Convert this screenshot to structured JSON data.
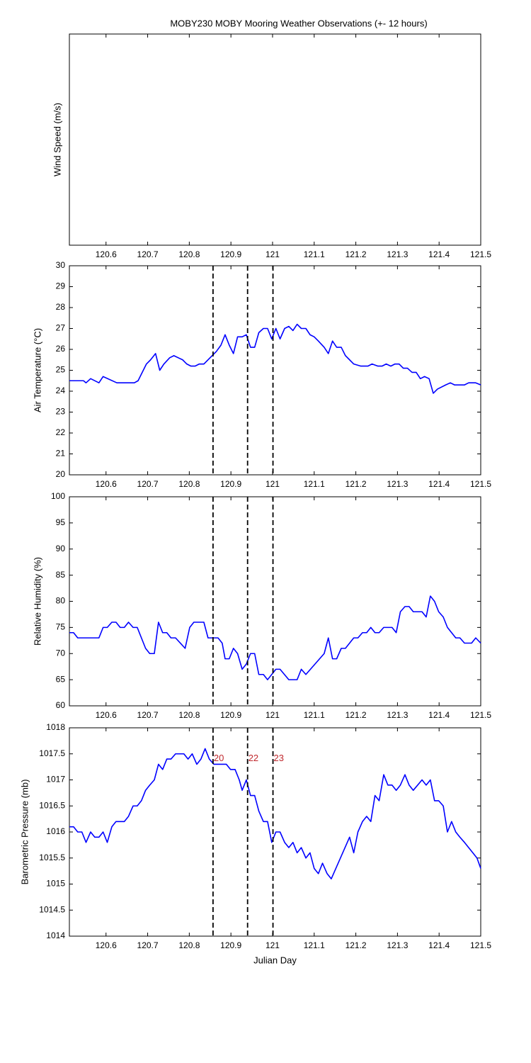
{
  "chart_data": [
    {
      "type": "line",
      "title": "MOBY230 MOBY Mooring Weather Observations (+- 12 hours)",
      "ylabel": "Wind Speed (m/s)",
      "xlim": [
        120.512,
        121.5
      ],
      "xticks": [
        120.6,
        120.7,
        120.8,
        120.9,
        121,
        121.1,
        121.2,
        121.3,
        121.4,
        121.5
      ]
    },
    {
      "type": "line",
      "ylabel": "Air Temperature (°C)",
      "color": "#0000ff",
      "xlim": [
        120.512,
        121.5
      ],
      "xticks": [
        120.6,
        120.7,
        120.8,
        120.9,
        121,
        121.1,
        121.2,
        121.3,
        121.4,
        121.5
      ],
      "ylim": [
        20,
        30
      ],
      "yticks": [
        20,
        21,
        22,
        23,
        24,
        25,
        26,
        27,
        28,
        29,
        30
      ],
      "vlines": [
        120.857,
        120.94,
        121.001
      ],
      "x": [
        120.512,
        120.546,
        120.552,
        120.563,
        120.583,
        120.593,
        120.626,
        120.668,
        120.677,
        120.697,
        120.707,
        120.719,
        120.729,
        120.739,
        120.753,
        120.763,
        120.784,
        120.794,
        120.804,
        120.814,
        120.824,
        120.835,
        120.855,
        120.865,
        120.876,
        120.886,
        120.896,
        120.906,
        120.916,
        120.927,
        120.937,
        120.947,
        120.957,
        120.967,
        120.978,
        120.988,
        120.998,
        121.008,
        121.018,
        121.029,
        121.039,
        121.049,
        121.059,
        121.069,
        121.08,
        121.09,
        121.1,
        121.11,
        121.124,
        121.134,
        121.144,
        121.154,
        121.165,
        121.175,
        121.185,
        121.195,
        121.212,
        121.229,
        121.239,
        121.253,
        121.263,
        121.273,
        121.284,
        121.294,
        121.304,
        121.314,
        121.324,
        121.335,
        121.345,
        121.355,
        121.365,
        121.376,
        121.386,
        121.396,
        121.416,
        121.427,
        121.437,
        121.461,
        121.471,
        121.488,
        121.5
      ],
      "values": [
        24.5,
        24.5,
        24.4,
        24.6,
        24.4,
        24.7,
        24.4,
        24.4,
        24.5,
        25.3,
        25.5,
        25.8,
        25.0,
        25.3,
        25.6,
        25.7,
        25.5,
        25.3,
        25.2,
        25.2,
        25.3,
        25.3,
        25.7,
        25.9,
        26.2,
        26.7,
        26.2,
        25.8,
        26.6,
        26.6,
        26.7,
        26.1,
        26.1,
        26.8,
        27.0,
        27.0,
        26.5,
        27.0,
        26.5,
        27.0,
        27.1,
        26.9,
        27.2,
        27.0,
        27.0,
        26.7,
        26.6,
        26.4,
        26.1,
        25.8,
        26.4,
        26.1,
        26.1,
        25.7,
        25.5,
        25.3,
        25.2,
        25.2,
        25.3,
        25.2,
        25.2,
        25.3,
        25.2,
        25.3,
        25.3,
        25.1,
        25.1,
        24.9,
        24.9,
        24.6,
        24.7,
        24.6,
        23.9,
        24.1,
        24.3,
        24.4,
        24.3,
        24.3,
        24.4,
        24.4,
        24.3
      ]
    },
    {
      "type": "line",
      "ylabel": "Relative Humidity (%)",
      "color": "#0000ff",
      "xlim": [
        120.512,
        121.5
      ],
      "xticks": [
        120.6,
        120.7,
        120.8,
        120.9,
        121,
        121.1,
        121.2,
        121.3,
        121.4,
        121.5
      ],
      "ylim": [
        60,
        100
      ],
      "yticks": [
        60,
        65,
        70,
        75,
        80,
        85,
        90,
        95,
        100
      ],
      "vlines": [
        120.857,
        120.94,
        121.001
      ],
      "x": [
        120.512,
        120.522,
        120.532,
        120.583,
        120.593,
        120.603,
        120.614,
        120.624,
        120.634,
        120.644,
        120.654,
        120.665,
        120.675,
        120.695,
        120.705,
        120.716,
        120.726,
        120.736,
        120.746,
        120.756,
        120.767,
        120.79,
        120.801,
        120.811,
        120.835,
        120.845,
        120.859,
        120.869,
        120.879,
        120.886,
        120.896,
        120.906,
        120.916,
        120.927,
        120.937,
        120.947,
        120.957,
        120.967,
        120.978,
        120.988,
        120.998,
        121.008,
        121.018,
        121.039,
        121.059,
        121.069,
        121.08,
        121.124,
        121.134,
        121.144,
        121.154,
        121.165,
        121.175,
        121.195,
        121.205,
        121.216,
        121.226,
        121.236,
        121.246,
        121.256,
        121.267,
        121.287,
        121.297,
        121.307,
        121.318,
        121.328,
        121.338,
        121.359,
        121.369,
        121.379,
        121.389,
        121.399,
        121.41,
        121.42,
        121.43,
        121.44,
        121.45,
        121.461,
        121.478,
        121.488,
        121.5
      ],
      "values": [
        74,
        74,
        73,
        73,
        75,
        75,
        76,
        76,
        75,
        75,
        76,
        75,
        75,
        71,
        70,
        70,
        76,
        74,
        74,
        73,
        73,
        71,
        75,
        76,
        76,
        73,
        73,
        73,
        72,
        69,
        69,
        71,
        70,
        67,
        68,
        70,
        70,
        66,
        66,
        65,
        66,
        67,
        67,
        65,
        65,
        67,
        66,
        70,
        73,
        69,
        69,
        71,
        71,
        73,
        73,
        74,
        74,
        75,
        74,
        74,
        75,
        75,
        74,
        78,
        79,
        79,
        78,
        78,
        77,
        81,
        80,
        78,
        77,
        75,
        74,
        73,
        73,
        72,
        72,
        73,
        72
      ]
    },
    {
      "type": "line",
      "ylabel": "Barometric Pressure (mb)",
      "xlabel": "Julian Day",
      "color": "#0000ff",
      "xlim": [
        120.512,
        121.5
      ],
      "xticks": [
        120.6,
        120.7,
        120.8,
        120.9,
        121,
        121.1,
        121.2,
        121.3,
        121.4,
        121.5
      ],
      "ylim": [
        1014,
        1018
      ],
      "yticks": [
        1014,
        1014.5,
        1015,
        1015.5,
        1016,
        1016.5,
        1017,
        1017.5,
        1018
      ],
      "vlines": [
        120.857,
        120.94,
        121.001
      ],
      "annotations": [
        {
          "x": 120.857,
          "y": 1017.41,
          "text": "20"
        },
        {
          "x": 120.94,
          "y": 1017.41,
          "text": "22"
        },
        {
          "x": 121.001,
          "y": 1017.41,
          "text": "23"
        }
      ],
      "annotation_color": "#c0282d",
      "x": [
        120.512,
        120.522,
        120.532,
        120.542,
        120.552,
        120.563,
        120.573,
        120.583,
        120.593,
        120.603,
        120.614,
        120.624,
        120.644,
        120.654,
        120.665,
        120.675,
        120.685,
        120.695,
        120.705,
        120.716,
        120.726,
        120.736,
        120.746,
        120.756,
        120.767,
        120.787,
        120.797,
        120.807,
        120.818,
        120.828,
        120.838,
        120.848,
        120.859,
        120.889,
        120.899,
        120.91,
        120.92,
        120.927,
        120.937,
        120.947,
        120.957,
        120.967,
        120.978,
        120.988,
        120.998,
        121.008,
        121.018,
        121.029,
        121.039,
        121.049,
        121.059,
        121.069,
        121.08,
        121.09,
        121.1,
        121.11,
        121.12,
        121.131,
        121.141,
        121.185,
        121.195,
        121.205,
        121.216,
        121.226,
        121.236,
        121.246,
        121.256,
        121.267,
        121.277,
        121.287,
        121.297,
        121.307,
        121.318,
        121.328,
        121.338,
        121.359,
        121.369,
        121.379,
        121.389,
        121.399,
        121.41,
        121.42,
        121.43,
        121.44,
        121.45,
        121.461,
        121.481,
        121.491,
        121.5
      ],
      "values": [
        1016.1,
        1016.1,
        1016.0,
        1016.0,
        1015.8,
        1016.0,
        1015.9,
        1015.9,
        1016.0,
        1015.8,
        1016.1,
        1016.2,
        1016.2,
        1016.3,
        1016.5,
        1016.5,
        1016.6,
        1016.8,
        1016.9,
        1017.0,
        1017.3,
        1017.2,
        1017.4,
        1017.4,
        1017.5,
        1017.5,
        1017.4,
        1017.5,
        1017.3,
        1017.4,
        1017.6,
        1017.4,
        1017.3,
        1017.3,
        1017.2,
        1017.2,
        1017.0,
        1016.8,
        1017.0,
        1016.7,
        1016.7,
        1016.4,
        1016.2,
        1016.2,
        1015.8,
        1016.0,
        1016.0,
        1015.8,
        1015.7,
        1015.8,
        1015.6,
        1015.7,
        1015.5,
        1015.6,
        1015.3,
        1015.2,
        1015.4,
        1015.2,
        1015.1,
        1015.9,
        1015.6,
        1016.0,
        1016.2,
        1016.3,
        1016.2,
        1016.7,
        1016.6,
        1017.1,
        1016.9,
        1016.9,
        1016.8,
        1016.9,
        1017.1,
        1016.9,
        1016.8,
        1017.0,
        1016.9,
        1017.0,
        1016.6,
        1016.6,
        1016.5,
        1016.0,
        1016.2,
        1016.0,
        1015.9,
        1015.8,
        1015.6,
        1015.5,
        1015.3
      ]
    }
  ]
}
